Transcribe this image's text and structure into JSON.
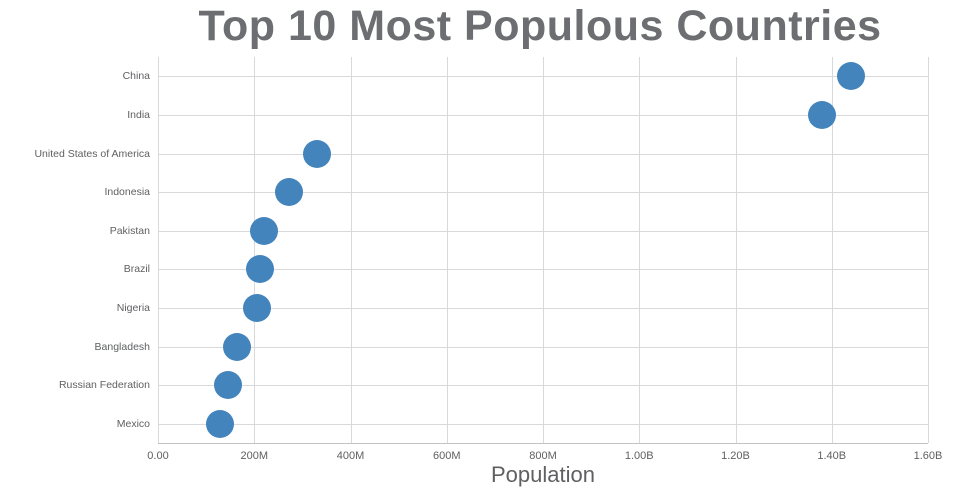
{
  "chart_data": {
    "type": "scatter",
    "title": "Top 10 Most Populous Countries",
    "xlabel": "Population",
    "ylabel": "",
    "categories": [
      "China",
      "India",
      "United States of America",
      "Indonesia",
      "Pakistan",
      "Brazil",
      "Nigeria",
      "Bangladesh",
      "Russian Federation",
      "Mexico"
    ],
    "values": [
      1439000000,
      1380000000,
      331000000,
      273000000,
      221000000,
      212000000,
      206000000,
      165000000,
      146000000,
      129000000
    ],
    "xlim": [
      0,
      1600000000
    ],
    "x_ticks": [
      {
        "value": 0,
        "label": "0.00"
      },
      {
        "value": 200000000,
        "label": "200M"
      },
      {
        "value": 400000000,
        "label": "400M"
      },
      {
        "value": 600000000,
        "label": "600M"
      },
      {
        "value": 800000000,
        "label": "800M"
      },
      {
        "value": 1000000000,
        "label": "1.00B"
      },
      {
        "value": 1200000000,
        "label": "1.20B"
      },
      {
        "value": 1400000000,
        "label": "1.40B"
      },
      {
        "value": 1600000000,
        "label": "1.60B"
      }
    ],
    "grid": true,
    "legend": "none",
    "point_color": "#4384bd",
    "point_radius": 14
  }
}
